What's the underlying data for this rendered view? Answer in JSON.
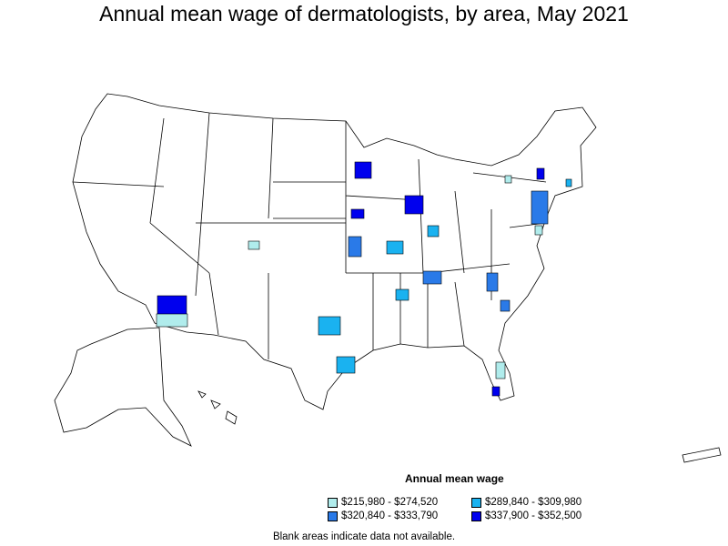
{
  "title": "Annual mean wage of dermatologists, by area, May 2021",
  "legend": {
    "title": "Annual mean wage",
    "items": [
      {
        "label": "$215,980 - $274,520",
        "color": "#b0ecec"
      },
      {
        "label": "$289,840 - $309,980",
        "color": "#1ab2f0"
      },
      {
        "label": "$320,840 - $333,790",
        "color": "#2a7ae8"
      },
      {
        "label": "$337,900 - $352,500",
        "color": "#0000ee"
      }
    ]
  },
  "note": "Blank areas indicate data not available."
}
